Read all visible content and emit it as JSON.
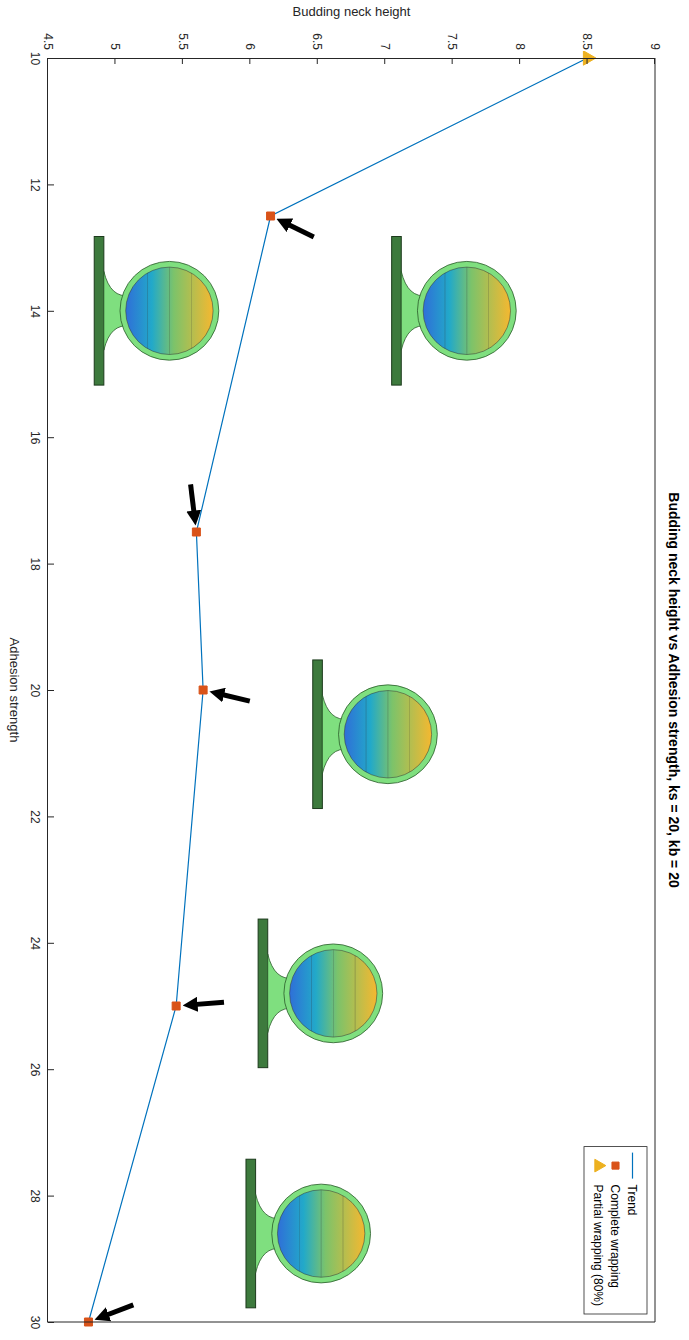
{
  "chart_data": {
    "type": "line",
    "title": "Budding neck height vs Adhesion strength, ks = 20, kb = 20",
    "x_label": "Adhesion strength",
    "y_label": "Budding neck height",
    "x": [
      10,
      12.5,
      17.5,
      20,
      25,
      30
    ],
    "series": [
      {
        "name": "Trend",
        "type": "line",
        "line_style": "solid",
        "color": "#0072bd",
        "values": [
          8.5,
          6.15,
          5.6,
          5.65,
          5.45,
          4.8
        ]
      },
      {
        "name": "Complete wrapping",
        "type": "scatter",
        "marker": "square",
        "color": "#d95319",
        "values": [
          null,
          6.15,
          5.6,
          5.65,
          5.45,
          4.8
        ]
      },
      {
        "name": "Partial wrapping (80%)",
        "type": "scatter",
        "marker": "triangle",
        "color": "#edb120",
        "values": [
          8.5,
          null,
          null,
          null,
          null,
          null
        ]
      }
    ],
    "xlim": [
      10,
      30
    ],
    "xticks": [
      10,
      12,
      14,
      16,
      18,
      20,
      22,
      24,
      26,
      28,
      30
    ],
    "ylim": [
      4.5,
      9
    ],
    "yticks": [
      4.5,
      5,
      5.5,
      6,
      6.5,
      7,
      7.5,
      8,
      8.5,
      9
    ],
    "grid": false,
    "legend": "upper right"
  }
}
